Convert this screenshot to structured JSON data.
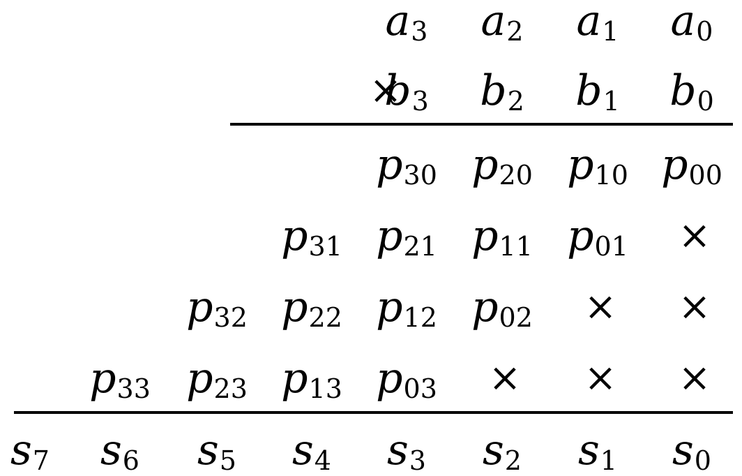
{
  "multiplicand": [
    {
      "base": "a",
      "sub": "3"
    },
    {
      "base": "a",
      "sub": "2"
    },
    {
      "base": "a",
      "sub": "1"
    },
    {
      "base": "a",
      "sub": "0"
    }
  ],
  "multiplier_symbol": "×",
  "multiplier": [
    {
      "base": "b",
      "sub": "3"
    },
    {
      "base": "b",
      "sub": "2"
    },
    {
      "base": "b",
      "sub": "1"
    },
    {
      "base": "b",
      "sub": "0"
    }
  ],
  "partial_products": [
    [
      {
        "base": "p",
        "sub": "30"
      },
      {
        "base": "p",
        "sub": "20"
      },
      {
        "base": "p",
        "sub": "10"
      },
      {
        "base": "p",
        "sub": "00"
      }
    ],
    [
      {
        "base": "p",
        "sub": "31"
      },
      {
        "base": "p",
        "sub": "21"
      },
      {
        "base": "p",
        "sub": "11"
      },
      {
        "base": "p",
        "sub": "01"
      },
      {
        "base": "×",
        "sub": ""
      }
    ],
    [
      {
        "base": "p",
        "sub": "32"
      },
      {
        "base": "p",
        "sub": "22"
      },
      {
        "base": "p",
        "sub": "12"
      },
      {
        "base": "p",
        "sub": "02"
      },
      {
        "base": "×",
        "sub": ""
      },
      {
        "base": "×",
        "sub": ""
      }
    ],
    [
      {
        "base": "p",
        "sub": "33"
      },
      {
        "base": "p",
        "sub": "23"
      },
      {
        "base": "p",
        "sub": "13"
      },
      {
        "base": "p",
        "sub": "03"
      },
      {
        "base": "×",
        "sub": ""
      },
      {
        "base": "×",
        "sub": ""
      },
      {
        "base": "×",
        "sub": ""
      }
    ]
  ],
  "sum": [
    {
      "base": "s",
      "sub": "7"
    },
    {
      "base": "s",
      "sub": "6"
    },
    {
      "base": "s",
      "sub": "5"
    },
    {
      "base": "s",
      "sub": "4"
    },
    {
      "base": "s",
      "sub": "3"
    },
    {
      "base": "s",
      "sub": "2"
    },
    {
      "base": "s",
      "sub": "1"
    },
    {
      "base": "s",
      "sub": "0"
    }
  ]
}
